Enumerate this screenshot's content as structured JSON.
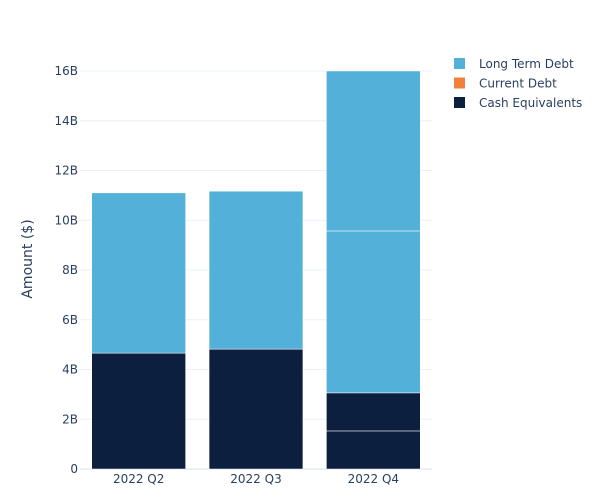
{
  "chart_data": {
    "type": "bar",
    "barmode": "stack",
    "title": "",
    "xlabel": "",
    "ylabel": "Amount ($)",
    "categories": [
      "2022 Q2",
      "2022 Q3",
      "2022 Q4"
    ],
    "ylim": [
      0,
      16.8
    ],
    "yticks": [
      0,
      2,
      4,
      6,
      8,
      10,
      12,
      14,
      16
    ],
    "ytick_labels": [
      "0",
      "2B",
      "4B",
      "6B",
      "8B",
      "10B",
      "12B",
      "14B",
      "16B"
    ],
    "unit_multiplier": 1000000000,
    "grid": true,
    "legend_position": "top-right",
    "series": [
      {
        "name": "Cash Equivalents",
        "color": "#0d1f3f",
        "segments": [
          [
            4.66
          ],
          [
            4.82
          ],
          [
            1.53,
            1.53
          ]
        ]
      },
      {
        "name": "Current Debt",
        "color": "#f0803a",
        "segments": [
          [
            0
          ],
          [
            0
          ],
          [
            0
          ]
        ]
      },
      {
        "name": "Long Term Debt",
        "color": "#52b0d9",
        "segments": [
          [
            6.44
          ],
          [
            6.35
          ],
          [
            6.51,
            6.43
          ]
        ]
      }
    ],
    "legend_order": [
      "Long Term Debt",
      "Current Debt",
      "Cash Equivalents"
    ]
  }
}
